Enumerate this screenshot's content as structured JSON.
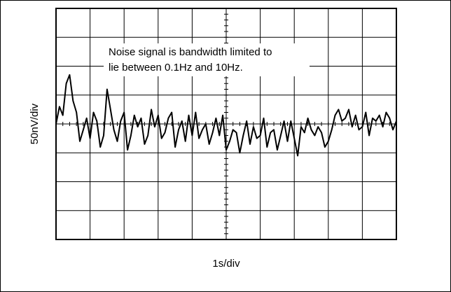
{
  "chart_data": {
    "type": "line",
    "title": "",
    "annotation": [
      "Noise signal is bandwidth limited to",
      "lie between 0.1Hz and 10Hz."
    ],
    "xlabel": "1s/div",
    "ylabel": "50nV/div",
    "x_divisions": 10,
    "y_divisions": 8,
    "xlim": [
      0,
      10
    ],
    "ylim": [
      -200,
      200
    ],
    "x_unit": "s",
    "y_unit": "nV",
    "grid": true,
    "legend": "none",
    "colors": {
      "trace": "#000000",
      "grid": "#000000",
      "background": "#ffffff"
    },
    "series": [
      {
        "x": [
          0.0,
          0.1,
          0.2,
          0.3,
          0.4,
          0.5,
          0.6,
          0.7,
          0.8,
          0.9,
          1.0,
          1.1,
          1.2,
          1.3,
          1.4,
          1.5,
          1.6,
          1.7,
          1.8,
          1.9,
          2.0,
          2.1,
          2.2,
          2.3,
          2.4,
          2.5,
          2.6,
          2.7,
          2.8,
          2.9,
          3.0,
          3.1,
          3.2,
          3.3,
          3.4,
          3.5,
          3.6,
          3.7,
          3.8,
          3.9,
          4.0,
          4.1,
          4.2,
          4.3,
          4.4,
          4.5,
          4.6,
          4.7,
          4.8,
          4.9,
          5.0,
          5.1,
          5.2,
          5.3,
          5.4,
          5.5,
          5.6,
          5.7,
          5.8,
          5.9,
          6.0,
          6.1,
          6.2,
          6.3,
          6.4,
          6.5,
          6.6,
          6.7,
          6.8,
          6.9,
          7.0,
          7.1,
          7.2,
          7.3,
          7.4,
          7.5,
          7.6,
          7.7,
          7.8,
          7.9,
          8.0,
          8.1,
          8.2,
          8.3,
          8.4,
          8.5,
          8.6,
          8.7,
          8.8,
          8.9,
          9.0,
          9.1,
          9.2,
          9.3,
          9.4,
          9.5,
          9.6,
          9.7,
          9.8,
          9.9,
          10.0
        ],
        "y": [
          0,
          30,
          15,
          70,
          85,
          40,
          20,
          -30,
          -10,
          10,
          -25,
          20,
          5,
          -40,
          -20,
          60,
          25,
          -10,
          -30,
          5,
          20,
          -45,
          -20,
          15,
          -5,
          10,
          -35,
          -20,
          25,
          -5,
          15,
          -25,
          -15,
          10,
          20,
          -40,
          -10,
          5,
          -30,
          15,
          -20,
          20,
          -25,
          -10,
          0,
          -35,
          -15,
          10,
          -20,
          15,
          -45,
          -30,
          -10,
          -15,
          -50,
          -20,
          5,
          -35,
          -5,
          -25,
          -20,
          10,
          -40,
          -15,
          -10,
          -45,
          -20,
          5,
          -30,
          5,
          -25,
          -55,
          -5,
          -15,
          10,
          -10,
          -20,
          -5,
          -15,
          -40,
          -30,
          -10,
          15,
          25,
          5,
          10,
          25,
          -5,
          15,
          -10,
          -5,
          20,
          -20,
          10,
          5,
          15,
          -5,
          20,
          10,
          -10,
          5
        ]
      }
    ]
  }
}
